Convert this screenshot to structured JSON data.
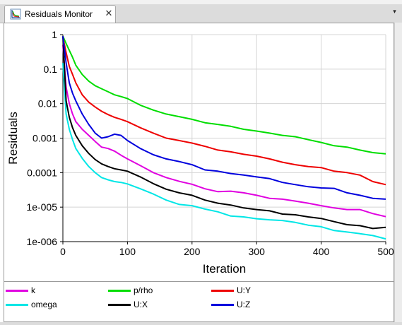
{
  "tab": {
    "title": "Residuals Monitor",
    "close": "✕",
    "icon": "residuals-chart-icon",
    "menu": "▾"
  },
  "chart_data": {
    "type": "line",
    "xlabel": "Iteration",
    "ylabel": "Residuals",
    "xlim": [
      0,
      500
    ],
    "ylim": [
      1e-06,
      1
    ],
    "yscale": "log",
    "grid": true,
    "legend_position": "bottom",
    "x_ticks": [
      "0",
      "100",
      "200",
      "300",
      "400",
      "500"
    ],
    "y_ticks": [
      "1",
      "0.1",
      "0.01",
      "0.001",
      "0.0001",
      "1e-005",
      "1e-006"
    ],
    "series": [
      {
        "name": "k",
        "color": "#e000e0",
        "x": [
          0,
          5,
          10,
          15,
          20,
          30,
          40,
          50,
          60,
          70,
          80,
          90,
          100,
          120,
          140,
          160,
          180,
          200,
          220,
          240,
          260,
          280,
          300,
          320,
          340,
          360,
          380,
          400,
          420,
          440,
          460,
          480,
          500
        ],
        "y": [
          0.5,
          0.03,
          0.01,
          0.005,
          0.003,
          0.0018,
          0.0012,
          0.0008,
          0.00055,
          0.0005,
          0.00042,
          0.00032,
          0.00025,
          0.00016,
          0.0001,
          7.2e-05,
          5.6e-05,
          4.6e-05,
          3.4e-05,
          2.8e-05,
          2.9e-05,
          2.6e-05,
          2.2e-05,
          1.8e-05,
          1.7e-05,
          1.5e-05,
          1.3e-05,
          1.1e-05,
          9.5e-06,
          8.5e-06,
          8.5e-06,
          6.5e-06,
          5.3e-06
        ]
      },
      {
        "name": "p/rho",
        "color": "#00dd00",
        "x": [
          0,
          5,
          10,
          15,
          20,
          30,
          40,
          50,
          60,
          70,
          80,
          90,
          100,
          120,
          140,
          160,
          180,
          200,
          220,
          240,
          260,
          280,
          300,
          320,
          340,
          360,
          380,
          400,
          420,
          440,
          460,
          480,
          500
        ],
        "y": [
          0.9,
          0.55,
          0.35,
          0.22,
          0.13,
          0.07,
          0.045,
          0.033,
          0.027,
          0.022,
          0.018,
          0.016,
          0.014,
          0.009,
          0.0065,
          0.005,
          0.0042,
          0.0035,
          0.0028,
          0.0025,
          0.0022,
          0.0018,
          0.0016,
          0.0014,
          0.0012,
          0.0011,
          0.0009,
          0.00075,
          0.0006,
          0.00055,
          0.00045,
          0.00038,
          0.00035
        ]
      },
      {
        "name": "U:Y",
        "color": "#ee0000",
        "x": [
          0,
          5,
          10,
          15,
          20,
          30,
          40,
          50,
          60,
          70,
          80,
          90,
          100,
          120,
          140,
          160,
          180,
          200,
          220,
          240,
          260,
          280,
          300,
          320,
          340,
          360,
          380,
          400,
          420,
          440,
          460,
          480,
          500
        ],
        "y": [
          0.85,
          0.3,
          0.12,
          0.07,
          0.04,
          0.018,
          0.011,
          0.008,
          0.006,
          0.0048,
          0.004,
          0.0035,
          0.003,
          0.002,
          0.0014,
          0.001,
          0.00085,
          0.00072,
          0.00058,
          0.00045,
          0.0004,
          0.00034,
          0.0003,
          0.00025,
          0.0002,
          0.00017,
          0.00015,
          0.00014,
          0.00011,
          0.0001,
          8.5e-05,
          5.5e-05,
          4.5e-05
        ]
      },
      {
        "name": "omega",
        "color": "#00e6e6",
        "x": [
          0,
          5,
          10,
          15,
          20,
          30,
          40,
          50,
          60,
          70,
          80,
          90,
          100,
          120,
          140,
          160,
          180,
          200,
          220,
          240,
          260,
          280,
          300,
          320,
          340,
          360,
          380,
          400,
          420,
          440,
          460,
          480,
          500
        ],
        "y": [
          0.15,
          0.005,
          0.0018,
          0.0009,
          0.0005,
          0.00026,
          0.00015,
          0.0001,
          7.2e-05,
          6.2e-05,
          5.5e-05,
          5.2e-05,
          4.7e-05,
          3.4e-05,
          2.4e-05,
          1.6e-05,
          1.2e-05,
          1.1e-05,
          8.8e-06,
          7.3e-06,
          5.5e-06,
          5.2e-06,
          4.6e-06,
          4.3e-06,
          4.1e-06,
          3.6e-06,
          3e-06,
          2.7e-06,
          2.1e-06,
          1.9e-06,
          1.7e-06,
          1.5e-06,
          1.2e-06
        ]
      },
      {
        "name": "U:X",
        "color": "#000000",
        "x": [
          0,
          5,
          10,
          15,
          20,
          30,
          40,
          50,
          60,
          70,
          80,
          90,
          100,
          120,
          140,
          160,
          180,
          200,
          220,
          240,
          260,
          280,
          300,
          320,
          340,
          360,
          380,
          400,
          420,
          440,
          460,
          480,
          500
        ],
        "y": [
          0.9,
          0.012,
          0.004,
          0.002,
          0.0012,
          0.0006,
          0.00036,
          0.00024,
          0.00018,
          0.00015,
          0.00013,
          0.00012,
          0.00011,
          7.5e-05,
          4.8e-05,
          3.3e-05,
          2.6e-05,
          2.2e-05,
          1.6e-05,
          1.3e-05,
          1.15e-05,
          9.5e-06,
          8.5e-06,
          7.8e-06,
          6.3e-06,
          6e-06,
          5.2e-06,
          4.7e-06,
          3.8e-06,
          3.1e-06,
          2.9e-06,
          2.4e-06,
          2.6e-06
        ]
      },
      {
        "name": "U:Z",
        "color": "#0000dd",
        "x": [
          0,
          5,
          10,
          15,
          20,
          30,
          40,
          50,
          60,
          70,
          80,
          90,
          100,
          120,
          140,
          160,
          180,
          200,
          220,
          240,
          260,
          280,
          300,
          320,
          340,
          360,
          380,
          400,
          420,
          440,
          460,
          480,
          500
        ],
        "y": [
          0.9,
          0.15,
          0.04,
          0.02,
          0.012,
          0.005,
          0.0025,
          0.0014,
          0.001,
          0.0011,
          0.0013,
          0.0012,
          0.00085,
          0.0005,
          0.00033,
          0.00025,
          0.00021,
          0.00017,
          0.00012,
          0.00011,
          9.4e-05,
          8.5e-05,
          7.5e-05,
          6.7e-05,
          5.2e-05,
          4.5e-05,
          3.9e-05,
          3.6e-05,
          3.5e-05,
          2.6e-05,
          2.2e-05,
          1.8e-05,
          1.7e-05
        ]
      }
    ]
  }
}
